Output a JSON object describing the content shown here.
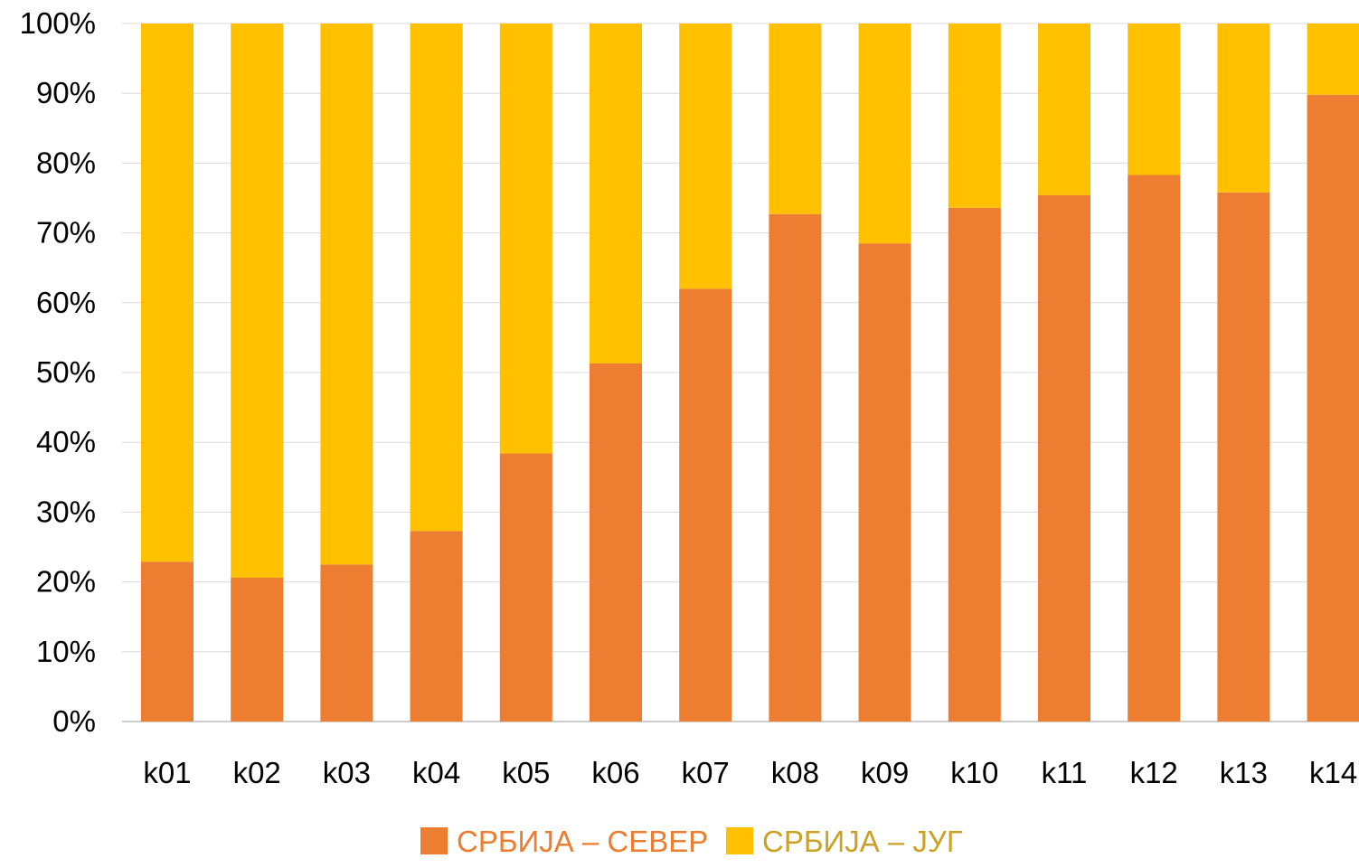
{
  "chart_data": {
    "type": "bar",
    "stacked": true,
    "percent": true,
    "categories": [
      "k01",
      "k02",
      "k03",
      "k04",
      "k05",
      "k06",
      "k07",
      "k08",
      "k09",
      "k10",
      "k11",
      "k12",
      "k13",
      "k14"
    ],
    "series": [
      {
        "name": "СРБИЈА – СЕВЕР",
        "color": "#ED7D31",
        "values": [
          22.9,
          20.6,
          22.5,
          27.3,
          38.4,
          51.3,
          62.0,
          72.7,
          68.5,
          73.6,
          75.4,
          78.3,
          75.8,
          89.8
        ]
      },
      {
        "name": "СРБИЈА – ЈУГ",
        "color": "#FFC000",
        "values": [
          77.1,
          79.4,
          77.5,
          72.7,
          61.6,
          48.7,
          38.0,
          27.3,
          31.5,
          26.4,
          24.6,
          21.7,
          24.2,
          10.2
        ]
      }
    ],
    "ylim": [
      0,
      100
    ],
    "yticks": [
      "0%",
      "10%",
      "20%",
      "30%",
      "40%",
      "50%",
      "60%",
      "70%",
      "80%",
      "90%",
      "100%"
    ],
    "grid": true,
    "legend_position": "bottom",
    "legend_text_colors": [
      "#ED7D31",
      "#C9A227"
    ]
  }
}
